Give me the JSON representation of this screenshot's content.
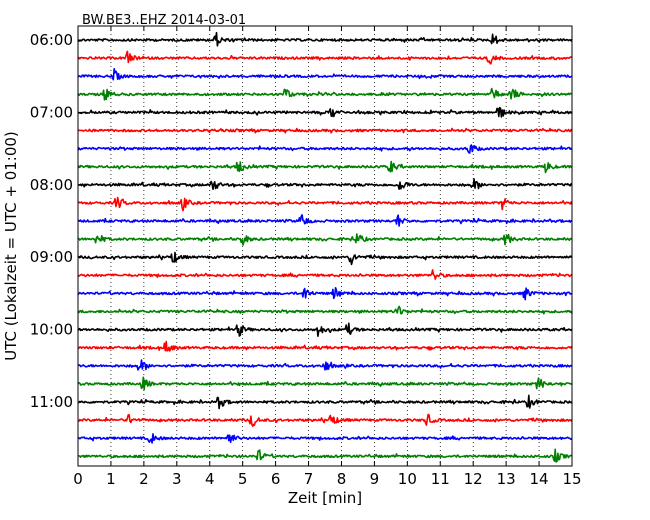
{
  "chart_data": {
    "type": "line",
    "title": "BW.BE3..EHZ 2014-03-01",
    "xlabel": "Zeit  [min]",
    "ylabel": "UTC (Lokalzeit = UTC + 01:00)",
    "xlim": [
      0,
      15
    ],
    "x_ticks": [
      "0",
      "1",
      "2",
      "3",
      "4",
      "5",
      "6",
      "7",
      "8",
      "9",
      "10",
      "11",
      "12",
      "13",
      "14",
      "15"
    ],
    "y_tick_labels": [
      "06:00",
      "07:00",
      "08:00",
      "09:00",
      "10:00",
      "11:00"
    ],
    "grid": "vertical-dotted",
    "trace_interval_min": 15,
    "color_cycle": [
      "#000000",
      "#ff0000",
      "#0000ff",
      "#008000"
    ],
    "traces": [
      {
        "start": "06:00",
        "events_min": [
          4.2,
          12.6
        ]
      },
      {
        "start": "06:15",
        "events_min": [
          1.5,
          12.5
        ]
      },
      {
        "start": "06:30",
        "events_min": [
          1.1
        ]
      },
      {
        "start": "06:45",
        "events_min": [
          0.85,
          6.3,
          12.6,
          13.2
        ]
      },
      {
        "start": "07:00",
        "events_min": [
          7.7,
          12.8
        ]
      },
      {
        "start": "07:15",
        "events_min": []
      },
      {
        "start": "07:30",
        "events_min": [
          11.9
        ]
      },
      {
        "start": "07:45",
        "events_min": [
          4.9,
          9.5,
          14.2
        ]
      },
      {
        "start": "08:00",
        "events_min": [
          4.1,
          9.8,
          12.0
        ]
      },
      {
        "start": "08:15",
        "events_min": [
          1.2,
          3.2,
          12.9
        ]
      },
      {
        "start": "08:30",
        "events_min": [
          6.8,
          9.7
        ]
      },
      {
        "start": "08:45",
        "events_min": [
          0.6,
          5.0,
          8.5,
          13.0
        ]
      },
      {
        "start": "09:00",
        "events_min": [
          2.9,
          8.3
        ]
      },
      {
        "start": "09:15",
        "events_min": [
          10.8
        ]
      },
      {
        "start": "09:30",
        "events_min": [
          6.9,
          7.8,
          13.6
        ]
      },
      {
        "start": "09:45",
        "events_min": [
          9.7
        ]
      },
      {
        "start": "10:00",
        "events_min": [
          4.9,
          7.3,
          8.2
        ]
      },
      {
        "start": "10:15",
        "events_min": [
          2.7
        ]
      },
      {
        "start": "10:30",
        "events_min": [
          1.9,
          7.5
        ]
      },
      {
        "start": "10:45",
        "events_min": [
          2.0,
          14.0
        ]
      },
      {
        "start": "11:00",
        "events_min": [
          4.3,
          13.7
        ]
      },
      {
        "start": "11:15",
        "events_min": [
          1.5,
          5.3,
          7.7,
          10.6
        ]
      },
      {
        "start": "11:30",
        "events_min": [
          2.2,
          4.6
        ]
      },
      {
        "start": "11:45",
        "events_min": [
          5.5,
          14.5
        ]
      }
    ]
  }
}
